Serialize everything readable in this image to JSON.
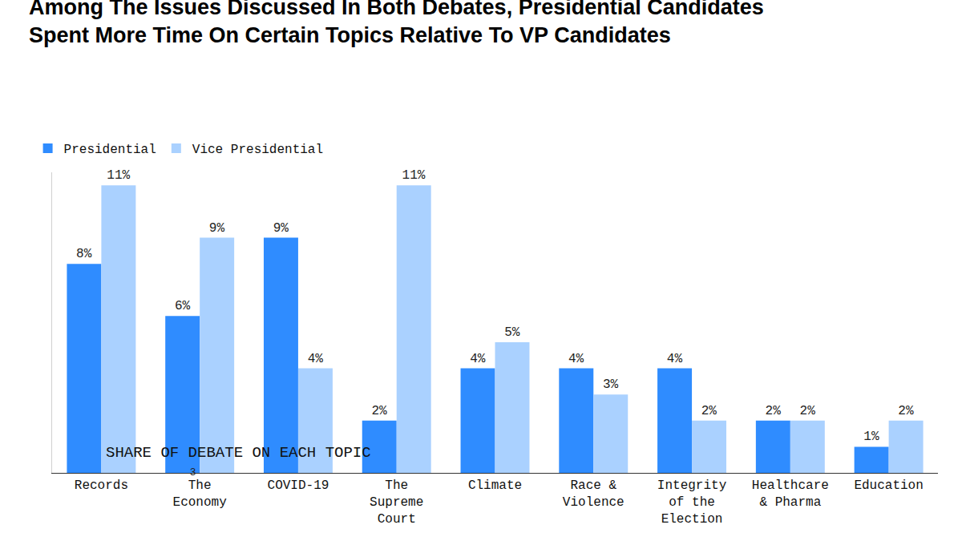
{
  "chart_data": {
    "type": "bar",
    "title": "Among The Issues Discussed In Both Debates, Presidential Candidates Spent More Time On Certain Topics Relative To VP Candidates",
    "subtitle": "SHARE OF DEBATE ON EACH TOPIC",
    "categories": [
      "Records",
      "The Economy",
      "COVID-19",
      "The Supreme Court",
      "Climate",
      "Race & Violence",
      "Integrity of the Election",
      "Healthcare & Pharma",
      "Education"
    ],
    "series": [
      {
        "name": "Presidential",
        "color": "#2f8cff",
        "values": [
          8,
          6,
          9,
          2,
          4,
          4,
          4,
          2,
          1
        ],
        "value_labels": [
          "8%",
          "6%",
          "9%",
          "2%",
          "4%",
          "4%",
          "4%",
          "2%",
          "1%"
        ]
      },
      {
        "name": "Vice Presidential",
        "color": "#aad1ff",
        "values": [
          11,
          9,
          4,
          11,
          5,
          3,
          2,
          2,
          2
        ],
        "value_labels": [
          "11%",
          "9%",
          "4%",
          "11%",
          "5%",
          "3%",
          "2%",
          "2%",
          "2%"
        ]
      }
    ],
    "ylim": [
      0,
      11.5
    ],
    "yticks": [
      0
    ],
    "grid": false,
    "legend": "top left",
    "data_labels": true,
    "tick_labels": "x",
    "annotations": [
      "3"
    ]
  }
}
